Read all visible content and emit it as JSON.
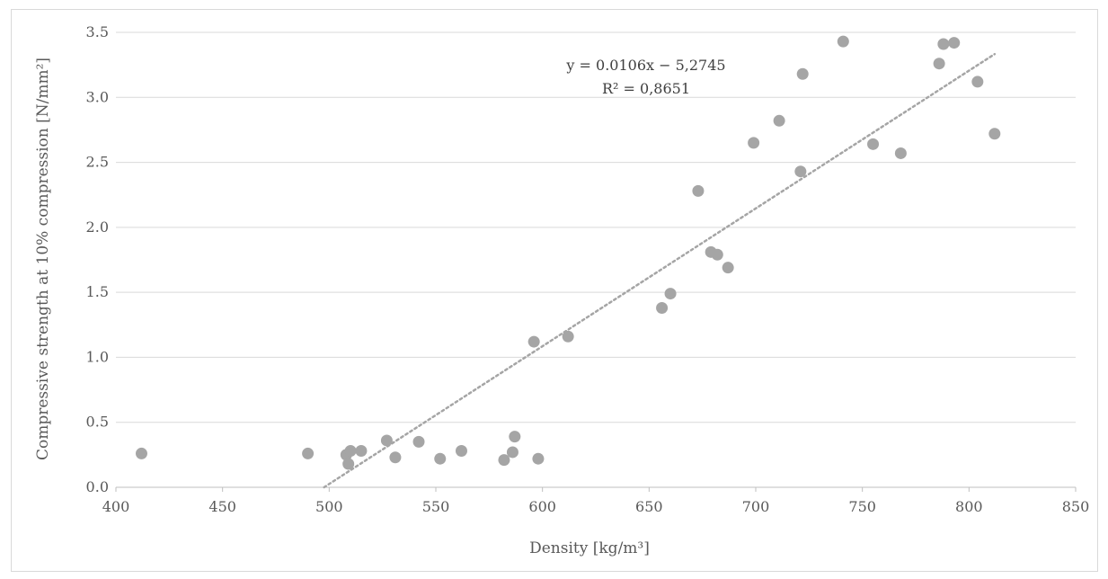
{
  "chart_data": {
    "type": "scatter",
    "xlabel": "Density [kg/m³]",
    "ylabel": "Compressive strength at 10% compression [N/mm²]",
    "xlim": [
      400,
      850
    ],
    "ylim": [
      0,
      3.5
    ],
    "x_ticks": [
      400,
      450,
      500,
      550,
      600,
      650,
      700,
      750,
      800,
      850
    ],
    "y_ticks": [
      0.0,
      0.5,
      1.0,
      1.5,
      2.0,
      2.5,
      3.0,
      3.5
    ],
    "y_tick_labels": [
      "0.0",
      "0.5",
      "1.0",
      "1.5",
      "2.0",
      "2.5",
      "3.0",
      "3.5"
    ],
    "grid": true,
    "marker_color": "#a5a5a5",
    "trendline_color": "#a5a5a5",
    "points": [
      {
        "x": 412,
        "y": 0.26
      },
      {
        "x": 490,
        "y": 0.26
      },
      {
        "x": 508,
        "y": 0.25
      },
      {
        "x": 509,
        "y": 0.18
      },
      {
        "x": 510,
        "y": 0.28
      },
      {
        "x": 515,
        "y": 0.28
      },
      {
        "x": 527,
        "y": 0.36
      },
      {
        "x": 531,
        "y": 0.23
      },
      {
        "x": 542,
        "y": 0.35
      },
      {
        "x": 552,
        "y": 0.22
      },
      {
        "x": 562,
        "y": 0.28
      },
      {
        "x": 582,
        "y": 0.21
      },
      {
        "x": 586,
        "y": 0.27
      },
      {
        "x": 587,
        "y": 0.39
      },
      {
        "x": 596,
        "y": 1.12
      },
      {
        "x": 598,
        "y": 0.22
      },
      {
        "x": 612,
        "y": 1.16
      },
      {
        "x": 656,
        "y": 1.38
      },
      {
        "x": 660,
        "y": 1.49
      },
      {
        "x": 673,
        "y": 2.28
      },
      {
        "x": 679,
        "y": 1.81
      },
      {
        "x": 682,
        "y": 1.79
      },
      {
        "x": 687,
        "y": 1.69
      },
      {
        "x": 699,
        "y": 2.65
      },
      {
        "x": 711,
        "y": 2.82
      },
      {
        "x": 721,
        "y": 2.43
      },
      {
        "x": 722,
        "y": 3.18
      },
      {
        "x": 741,
        "y": 3.43
      },
      {
        "x": 755,
        "y": 2.64
      },
      {
        "x": 768,
        "y": 2.57
      },
      {
        "x": 786,
        "y": 3.26
      },
      {
        "x": 788,
        "y": 3.41
      },
      {
        "x": 793,
        "y": 3.42
      },
      {
        "x": 804,
        "y": 3.12
      },
      {
        "x": 812,
        "y": 2.72
      }
    ],
    "trendline": {
      "type": "linear",
      "slope": 0.0106,
      "intercept": -5.2745,
      "x_range": [
        497.6,
        812
      ],
      "equation": "y = 0.0106x − 5,2745",
      "r_squared": "R² = 0,8651"
    }
  }
}
